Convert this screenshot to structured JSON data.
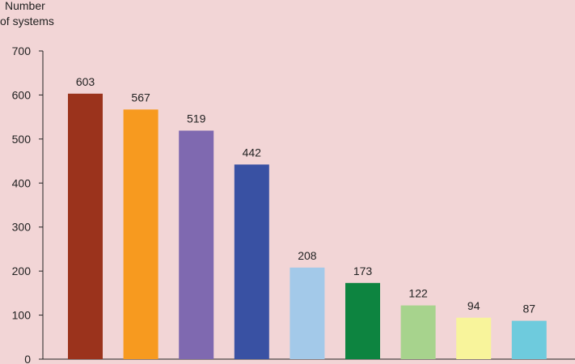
{
  "chart_data": {
    "type": "bar",
    "title": "",
    "xlabel": "",
    "ylabel_lines": [
      "Number",
      "of systems"
    ],
    "categories": [
      "",
      "",
      "",
      "",
      "",
      "",
      "",
      "",
      ""
    ],
    "values": [
      603,
      567,
      519,
      442,
      208,
      173,
      122,
      94,
      87
    ],
    "data_labels": [
      "603",
      "567",
      "519",
      "442",
      "208",
      "173",
      "122",
      "94",
      "87"
    ],
    "colors": [
      "#9b331c",
      "#f79a1f",
      "#7f69b0",
      "#3951a3",
      "#a3c9e9",
      "#0d8440",
      "#a7d38d",
      "#f8f49b",
      "#6ecbdd"
    ],
    "ylim": [
      0,
      700
    ],
    "yticks": [
      0,
      100,
      200,
      300,
      400,
      500,
      600,
      700
    ],
    "ytick_labels": [
      "0",
      "100",
      "200",
      "300",
      "400",
      "500",
      "600",
      "700"
    ],
    "grid": false,
    "legend": "none",
    "background": "#f2d5d6"
  }
}
